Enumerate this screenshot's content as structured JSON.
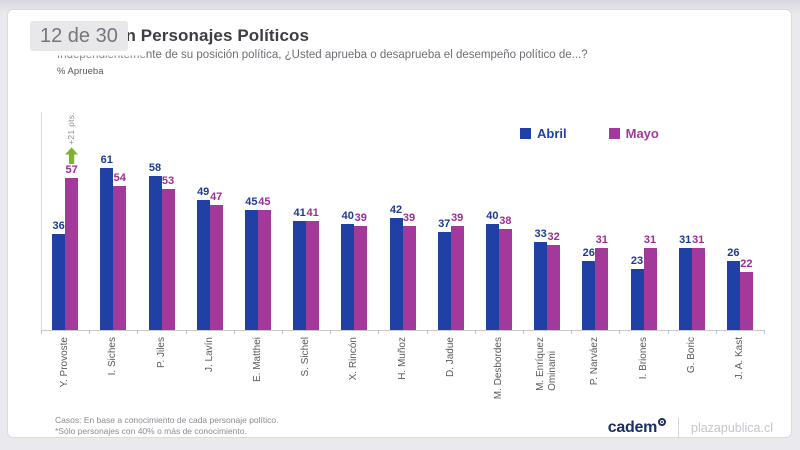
{
  "window": {
    "badge": "12 de 30"
  },
  "header": {
    "title_visible": "ón Personajes Políticos",
    "subtitle_obscured": "Independienteme",
    "subtitle_visible": "nte de su posición política, ¿Usted aprueba o desaprueba el desempeño político de...?",
    "metric_label": "% Aprueba"
  },
  "chart_data": {
    "type": "bar",
    "title": "ón Personajes Políticos",
    "ylabel": "% Aprueba",
    "ylim": [
      0,
      65
    ],
    "grid": false,
    "legend_position": "top-right",
    "categories": [
      "Y. Provoste",
      "I. Siches",
      "P. Jiles",
      "J. Lavín",
      "E. Matthei",
      "S. Sichel",
      "X. Rincón",
      "H. Muñoz",
      "D. Jadue",
      "M. Desbordes",
      "M. Enríquez\nOminami",
      "P. Narváez",
      "I. Briones",
      "G. Boric",
      "J. A. Kast"
    ],
    "series": [
      {
        "name": "Abril",
        "color": "#2140a6",
        "label_color": "#1d3a94",
        "values": [
          36,
          61,
          58,
          49,
          45,
          41,
          40,
          42,
          37,
          40,
          33,
          26,
          23,
          31,
          26
        ]
      },
      {
        "name": "Mayo",
        "color": "#a33a9b",
        "label_color": "#9d2d92",
        "values": [
          57,
          54,
          53,
          47,
          45,
          41,
          39,
          39,
          39,
          38,
          32,
          31,
          31,
          31,
          22
        ]
      }
    ],
    "annotation": {
      "category_index": 0,
      "series": "Mayo",
      "text": "+21 pts.",
      "text_color": "#8f8f96",
      "arrow_color": "#7cb52a"
    }
  },
  "footer": {
    "note1": "Casos: En base a conocimiento de cada personaje político.",
    "note2": "*Sólo personajes con 40% o más de conocimiento."
  },
  "brand": {
    "cadem": "cadem",
    "partner": "plazapublica.cl"
  }
}
